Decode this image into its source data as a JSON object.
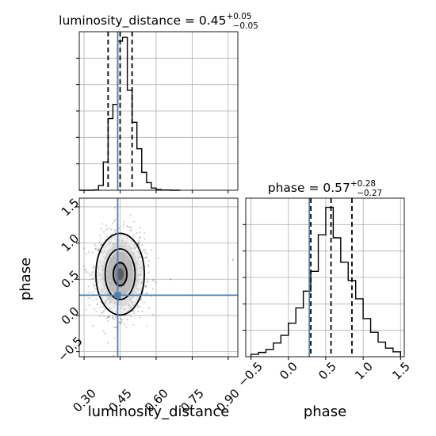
{
  "chart_data": [
    {
      "panel": "luminosity_distance_marginal",
      "type": "histogram",
      "title": {
        "name": "luminosity_distance",
        "median": "0.45",
        "plus": "+0.05",
        "minus": "−0.05"
      },
      "x_range": [
        0.28,
        0.94
      ],
      "x_ticks": [
        0.3,
        0.45,
        0.6,
        0.75,
        0.9
      ],
      "grid": true,
      "bin_edges": [
        0.28,
        0.3,
        0.32,
        0.34,
        0.36,
        0.38,
        0.4,
        0.42,
        0.44,
        0.46,
        0.48,
        0.5,
        0.52,
        0.54,
        0.56,
        0.58,
        0.6,
        0.62,
        0.64,
        0.66,
        0.68,
        0.7
      ],
      "counts": [
        0,
        0,
        0,
        2,
        25,
        150,
        380,
        455,
        790,
        810,
        530,
        360,
        220,
        95,
        40,
        12,
        4,
        1,
        1,
        0,
        0
      ],
      "quantiles": [
        0.4,
        0.45,
        0.5
      ],
      "truth": 0.44,
      "color": "#000000",
      "truth_color": "#4a7fb0"
    },
    {
      "panel": "phase_marginal",
      "type": "histogram",
      "title": {
        "name": "phase",
        "median": "0.57",
        "plus": "+0.28",
        "minus": "−0.27"
      },
      "x_range": [
        -0.57,
        1.55
      ],
      "x_ticks": [
        -0.5,
        0.0,
        0.5,
        1.0,
        1.5
      ],
      "grid": true,
      "bin_edges": [
        -0.5,
        -0.4,
        -0.3,
        -0.2,
        -0.1,
        0.0,
        0.1,
        0.2,
        0.3,
        0.4,
        0.5,
        0.6,
        0.7,
        0.8,
        0.9,
        1.0,
        1.1,
        1.2,
        1.3,
        1.4,
        1.5
      ],
      "counts": [
        8,
        14,
        24,
        45,
        70,
        110,
        160,
        215,
        280,
        400,
        490,
        390,
        310,
        250,
        190,
        125,
        80,
        48,
        28,
        16
      ],
      "quantiles": [
        0.3,
        0.57,
        0.85
      ],
      "truth": 0.28,
      "color": "#000000",
      "truth_color": "#4a7fb0"
    },
    {
      "panel": "joint",
      "type": "scatter",
      "x_range": [
        0.28,
        0.94
      ],
      "y_range": [
        -0.57,
        1.62
      ],
      "x_ticks": [
        0.3,
        0.45,
        0.6,
        0.75,
        0.9
      ],
      "y_ticks": [
        -0.5,
        0.0,
        0.5,
        1.0,
        1.5
      ],
      "xlabel": "luminosity_distance",
      "ylabel": "phase",
      "grid": true,
      "center": [
        0.45,
        0.57
      ],
      "spread": [
        0.05,
        0.28
      ],
      "contour_levels": [
        0.39,
        0.86,
        1.39
      ],
      "truth": [
        0.44,
        0.28
      ],
      "outliers": [
        [
          0.66,
          0.5
        ],
        [
          0.92,
          0.77
        ],
        [
          0.31,
          0.6
        ],
        [
          0.34,
          0.66
        ]
      ],
      "color": "#000000",
      "truth_color": "#4a7fb0"
    }
  ],
  "labels": {
    "xlabel_left": "luminosity_distance",
    "xlabel_right": "phase",
    "ylabel": "phase",
    "x_ticks_left": [
      "0.30",
      "0.45",
      "0.60",
      "0.75",
      "0.90"
    ],
    "x_ticks_right": [
      "−0.5",
      "0.0",
      "0.5",
      "1.0",
      "1.5"
    ],
    "y_ticks_joint": [
      "−0.5",
      "0.0",
      "0.5",
      "1.0",
      "1.5"
    ]
  }
}
